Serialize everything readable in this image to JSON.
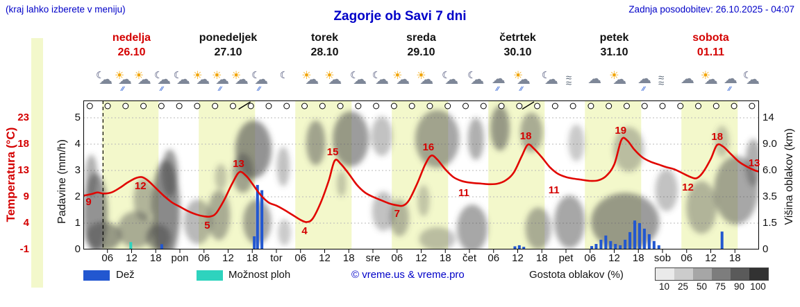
{
  "header": {
    "hint": "(kraj lahko izberete v meniju)",
    "title": "Zagorje ob Savi 7 dni",
    "updated": "Zadnja posodobitev: 26.10.2025 - 04:07"
  },
  "days": [
    {
      "name": "nedelja",
      "date": "26.10",
      "weekend": true
    },
    {
      "name": "ponedeljek",
      "date": "27.10",
      "weekend": false
    },
    {
      "name": "torek",
      "date": "28.10",
      "weekend": false
    },
    {
      "name": "sreda",
      "date": "29.10",
      "weekend": false
    },
    {
      "name": "četrtek",
      "date": "30.10",
      "weekend": false
    },
    {
      "name": "petek",
      "date": "31.10",
      "weekend": false
    },
    {
      "name": "sobota",
      "date": "01.11",
      "weekend": true
    }
  ],
  "axes": {
    "temp_label": "Temperatura (°C)",
    "temp_ticks": [
      "23",
      "18",
      "13",
      "9",
      "4",
      "-1"
    ],
    "precip_label": "Padavine (mm/h)",
    "precip_ticks": [
      "5",
      "4",
      "3",
      "2",
      "1",
      "0"
    ],
    "cloud_label": "Višina oblakov (km)",
    "cloud_ticks": [
      "14",
      "9.0",
      "6.0",
      "3.5",
      "1.5",
      "0"
    ],
    "time_ticks": [
      "06",
      "12",
      "18"
    ],
    "day_abbrevs": [
      "pon",
      "tor",
      "sre",
      "čet",
      "pet",
      "sob"
    ]
  },
  "legend": {
    "rain_label": "Dež",
    "showers_label": "Možnost ploh",
    "copyright": "© vreme.us & vreme.pro",
    "cloud_density_label": "Gostota oblakov (%)",
    "density_ticks": [
      "10",
      "25",
      "50",
      "75",
      "90",
      "100"
    ]
  },
  "colors": {
    "accent_blue": "#0000c8",
    "weekend_red": "#d40000",
    "weekday_text": "#111111",
    "temperature": "#e10600",
    "rain": "#2257d0",
    "shower": "#2ed3be",
    "daylight": "#f3f8cb",
    "cloud": "#4d4d4d",
    "density_scale": [
      "#eaeaea",
      "#cccccc",
      "#a6a6a6",
      "#7d7d7d",
      "#5a5a5a",
      "#323232"
    ]
  },
  "chart_data": {
    "type": "line",
    "x_hours_range": [
      0,
      168
    ],
    "temp_axis": {
      "min": -1,
      "max": 23
    },
    "precip_axis": {
      "min": 0,
      "max": 5
    },
    "cloud_axis_km": [
      0,
      1.5,
      3.5,
      6.0,
      9.0,
      14
    ],
    "daylight_hours": [
      4.7,
      18.7
    ],
    "now_hour": 4.9,
    "temperature_series": [
      [
        0,
        8.8
      ],
      [
        2,
        9.1
      ],
      [
        3.5,
        9.4
      ],
      [
        5,
        9.2
      ],
      [
        7,
        9.4
      ],
      [
        9,
        10.2
      ],
      [
        11,
        11.2
      ],
      [
        13,
        12
      ],
      [
        14.5,
        12.2
      ],
      [
        16,
        11.6
      ],
      [
        18,
        10.2
      ],
      [
        20,
        8.8
      ],
      [
        22,
        7.6
      ],
      [
        24,
        6.8
      ],
      [
        26,
        6
      ],
      [
        28,
        5.4
      ],
      [
        30,
        5.05
      ],
      [
        31.5,
        5
      ],
      [
        33,
        5.6
      ],
      [
        35,
        8
      ],
      [
        37,
        11
      ],
      [
        38.8,
        13.1
      ],
      [
        40.5,
        12.4
      ],
      [
        42,
        11
      ],
      [
        44,
        9
      ],
      [
        46,
        7.6
      ],
      [
        48,
        7
      ],
      [
        50,
        6.2
      ],
      [
        52,
        5.3
      ],
      [
        54,
        4.4
      ],
      [
        55.5,
        4
      ],
      [
        57,
        4.6
      ],
      [
        59,
        7.5
      ],
      [
        61,
        11.5
      ],
      [
        62.5,
        15.2
      ],
      [
        64,
        14.6
      ],
      [
        66,
        12.8
      ],
      [
        68,
        10.8
      ],
      [
        70,
        9.4
      ],
      [
        72,
        8.6
      ],
      [
        74,
        8
      ],
      [
        76,
        7.4
      ],
      [
        78,
        7.05
      ],
      [
        79.5,
        7
      ],
      [
        81,
        8
      ],
      [
        83,
        11
      ],
      [
        85,
        14.5
      ],
      [
        86.5,
        16.1
      ],
      [
        88,
        15.4
      ],
      [
        90,
        13.6
      ],
      [
        92,
        12.2
      ],
      [
        94,
        11.5
      ],
      [
        96,
        11.2
      ],
      [
        99,
        11
      ],
      [
        101,
        10.9
      ],
      [
        103,
        11
      ],
      [
        105,
        11.6
      ],
      [
        107,
        13
      ],
      [
        109,
        16
      ],
      [
        110.5,
        18.1
      ],
      [
        112,
        17.4
      ],
      [
        114,
        15.8
      ],
      [
        116,
        14
      ],
      [
        118,
        12.8
      ],
      [
        120,
        12.2
      ],
      [
        122,
        11.9
      ],
      [
        124,
        11.7
      ],
      [
        126,
        11.5
      ],
      [
        128,
        11.6
      ],
      [
        130,
        12.4
      ],
      [
        132,
        14.5
      ],
      [
        133.8,
        19
      ],
      [
        135.2,
        18.9
      ],
      [
        137,
        17.2
      ],
      [
        139,
        15.8
      ],
      [
        141,
        15
      ],
      [
        143,
        14.5
      ],
      [
        145,
        14
      ],
      [
        147,
        13.6
      ],
      [
        149,
        12.9
      ],
      [
        151,
        12.2
      ],
      [
        152.5,
        12
      ],
      [
        154,
        13
      ],
      [
        156,
        15.5
      ],
      [
        157.5,
        18
      ],
      [
        159,
        17.8
      ],
      [
        161,
        16.4
      ],
      [
        163,
        15
      ],
      [
        165,
        14.1
      ],
      [
        167,
        13.4
      ],
      [
        168,
        13.2
      ]
    ],
    "temperature_labels": [
      {
        "h": 1.3,
        "t": 7.6,
        "text": "9"
      },
      {
        "h": 14.2,
        "t": 10.5,
        "text": "12"
      },
      {
        "h": 30.8,
        "t": 3.3,
        "text": "5"
      },
      {
        "h": 38.6,
        "t": 14.6,
        "text": "13"
      },
      {
        "h": 55,
        "t": 2.3,
        "text": "4"
      },
      {
        "h": 62,
        "t": 16.7,
        "text": "15"
      },
      {
        "h": 78,
        "t": 5.4,
        "text": "7"
      },
      {
        "h": 85.8,
        "t": 17.6,
        "text": "16"
      },
      {
        "h": 94.6,
        "t": 9.2,
        "text": "11"
      },
      {
        "h": 110,
        "t": 19.6,
        "text": "18"
      },
      {
        "h": 117,
        "t": 9.7,
        "text": "11"
      },
      {
        "h": 133.6,
        "t": 20.6,
        "text": "19"
      },
      {
        "h": 150.3,
        "t": 10.3,
        "text": "12"
      },
      {
        "h": 157.6,
        "t": 19.5,
        "text": "18"
      },
      {
        "h": 166.8,
        "t": 14.7,
        "text": "13"
      }
    ],
    "rain_bars": [
      {
        "h": 11.8,
        "mm": 0.28,
        "kind": "shower"
      },
      {
        "h": 19.5,
        "mm": 0.2,
        "kind": "rain"
      },
      {
        "h": 42.5,
        "mm": 0.5,
        "kind": "rain"
      },
      {
        "h": 43.3,
        "mm": 2.45,
        "kind": "rain"
      },
      {
        "h": 44.4,
        "mm": 2.25,
        "kind": "rain"
      },
      {
        "h": 107.3,
        "mm": 0.12,
        "kind": "rain"
      },
      {
        "h": 108.4,
        "mm": 0.16,
        "kind": "rain"
      },
      {
        "h": 109.5,
        "mm": 0.1,
        "kind": "rain"
      },
      {
        "h": 126.4,
        "mm": 0.13,
        "kind": "rain"
      },
      {
        "h": 127.5,
        "mm": 0.21,
        "kind": "rain"
      },
      {
        "h": 128.7,
        "mm": 0.37,
        "kind": "rain"
      },
      {
        "h": 129.9,
        "mm": 0.53,
        "kind": "rain"
      },
      {
        "h": 131.1,
        "mm": 0.32,
        "kind": "rain"
      },
      {
        "h": 132.3,
        "mm": 0.21,
        "kind": "rain"
      },
      {
        "h": 133.5,
        "mm": 0.16,
        "kind": "rain"
      },
      {
        "h": 134.7,
        "mm": 0.37,
        "kind": "rain"
      },
      {
        "h": 135.9,
        "mm": 0.66,
        "kind": "rain"
      },
      {
        "h": 137.1,
        "mm": 1.1,
        "kind": "rain"
      },
      {
        "h": 138.3,
        "mm": 1.0,
        "kind": "rain"
      },
      {
        "h": 139.5,
        "mm": 0.79,
        "kind": "rain"
      },
      {
        "h": 140.7,
        "mm": 0.58,
        "kind": "rain"
      },
      {
        "h": 141.9,
        "mm": 0.32,
        "kind": "rain"
      },
      {
        "h": 143.1,
        "mm": 0.16,
        "kind": "rain"
      },
      {
        "h": 158.8,
        "mm": 0.68,
        "kind": "rain"
      }
    ],
    "cloud_blobs": [
      [
        3,
        1.4,
        3,
        1.5,
        0.6
      ],
      [
        5,
        0.5,
        4.5,
        0.55,
        0.55
      ],
      [
        2,
        2.8,
        1.5,
        0.8,
        0.45
      ],
      [
        13,
        0.75,
        4.5,
        0.7,
        0.45
      ],
      [
        15,
        1.9,
        2.5,
        0.8,
        0.4
      ],
      [
        20.5,
        1.5,
        3.5,
        1.9,
        0.65
      ],
      [
        21.5,
        2.9,
        2,
        0.9,
        0.55
      ],
      [
        18.7,
        0.45,
        3,
        0.5,
        0.6
      ],
      [
        28.5,
        1.05,
        3.5,
        0.85,
        0.4
      ],
      [
        33.7,
        1.3,
        2.8,
        0.95,
        0.45
      ],
      [
        34.2,
        2.75,
        1.5,
        0.5,
        0.3
      ],
      [
        42.3,
        3.8,
        4.5,
        1.1,
        0.6
      ],
      [
        39.7,
        2.9,
        2.6,
        0.75,
        0.5
      ],
      [
        43.2,
        1.05,
        3.5,
        0.85,
        0.5
      ],
      [
        49.7,
        3.15,
        1.6,
        0.75,
        0.35
      ],
      [
        50,
        0.65,
        1.6,
        0.5,
        0.3
      ],
      [
        57.8,
        4.05,
        2.4,
        0.85,
        0.5
      ],
      [
        66.5,
        4.2,
        4.5,
        1.05,
        0.55
      ],
      [
        64.2,
        2.5,
        1.2,
        0.5,
        0.3
      ],
      [
        74.2,
        4.3,
        2.6,
        0.75,
        0.35
      ],
      [
        74.6,
        1.45,
        2.8,
        0.75,
        0.35
      ],
      [
        78.6,
        1.2,
        2.4,
        0.7,
        0.4
      ],
      [
        88,
        4.2,
        5.5,
        1.1,
        0.5
      ],
      [
        84.6,
        1.85,
        1.5,
        0.6,
        0.3
      ],
      [
        88,
        0.4,
        4.5,
        0.45,
        0.35
      ],
      [
        96.7,
        0.8,
        3.8,
        0.9,
        0.5
      ],
      [
        97.6,
        4.2,
        2,
        0.8,
        0.45
      ],
      [
        103.6,
        4.6,
        2.4,
        0.85,
        0.55
      ],
      [
        111.4,
        4.45,
        2.8,
        0.75,
        0.45
      ],
      [
        113.1,
        0.8,
        3.2,
        0.8,
        0.45
      ],
      [
        120.9,
        1.05,
        3.8,
        1,
        0.5
      ],
      [
        122.6,
        4.05,
        2,
        0.7,
        0.3
      ],
      [
        134.7,
        1.05,
        8.5,
        1.1,
        0.55
      ],
      [
        135.6,
        3.8,
        3.8,
        0.85,
        0.35
      ],
      [
        145,
        2.25,
        2.8,
        0.8,
        0.35
      ],
      [
        153.7,
        1.6,
        3.8,
        1,
        0.4
      ],
      [
        162.3,
        2.25,
        5.5,
        1.3,
        0.5
      ],
      [
        166.6,
        3.3,
        2,
        0.9,
        0.45
      ],
      [
        158.8,
        4.1,
        1.8,
        0.6,
        0.3
      ]
    ],
    "symbol_row": {
      "count": 38,
      "start_h": 1.6,
      "step_h": 4.45,
      "symbol": "circle"
    },
    "front_marks_h": [
      40,
      110.5
    ],
    "icons": [
      {
        "h": 5.2,
        "type": "moon-cloud"
      },
      {
        "h": 10,
        "type": "sun-cloud-rain"
      },
      {
        "h": 14.8,
        "type": "sun-cloud"
      },
      {
        "h": 19.7,
        "type": "moon-cloud-rain"
      },
      {
        "h": 24.5,
        "type": "moon-cloud"
      },
      {
        "h": 29.4,
        "type": "sun-cloud"
      },
      {
        "h": 34.2,
        "type": "sun-cloud-rain"
      },
      {
        "h": 39,
        "type": "sun-cloud"
      },
      {
        "h": 43.9,
        "type": "moon-cloud-rain"
      },
      {
        "h": 50.9,
        "type": "moon"
      },
      {
        "h": 56.5,
        "type": "sun-cloud"
      },
      {
        "h": 62.2,
        "type": "sun-cloud"
      },
      {
        "h": 68.4,
        "type": "moon-cloud"
      },
      {
        "h": 73.9,
        "type": "moon-cloud"
      },
      {
        "h": 79.1,
        "type": "sun-cloud"
      },
      {
        "h": 85,
        "type": "sun-cloud"
      },
      {
        "h": 91.2,
        "type": "moon-cloud"
      },
      {
        "h": 97.6,
        "type": "moon-cloud"
      },
      {
        "h": 103.2,
        "type": "cloud-rain"
      },
      {
        "h": 109.1,
        "type": "sun-cloud-rain"
      },
      {
        "h": 116,
        "type": "moon-cloud"
      },
      {
        "h": 121.7,
        "type": "fog"
      },
      {
        "h": 127.1,
        "type": "cloud"
      },
      {
        "h": 133,
        "type": "sun-cloud"
      },
      {
        "h": 139.5,
        "type": "cloud-rain"
      },
      {
        "h": 144.7,
        "type": "fog"
      },
      {
        "h": 150.2,
        "type": "cloud"
      },
      {
        "h": 155.7,
        "type": "sun-cloud"
      },
      {
        "h": 160.9,
        "type": "cloud-rain"
      },
      {
        "h": 166.1,
        "type": "moon-cloud"
      }
    ]
  }
}
